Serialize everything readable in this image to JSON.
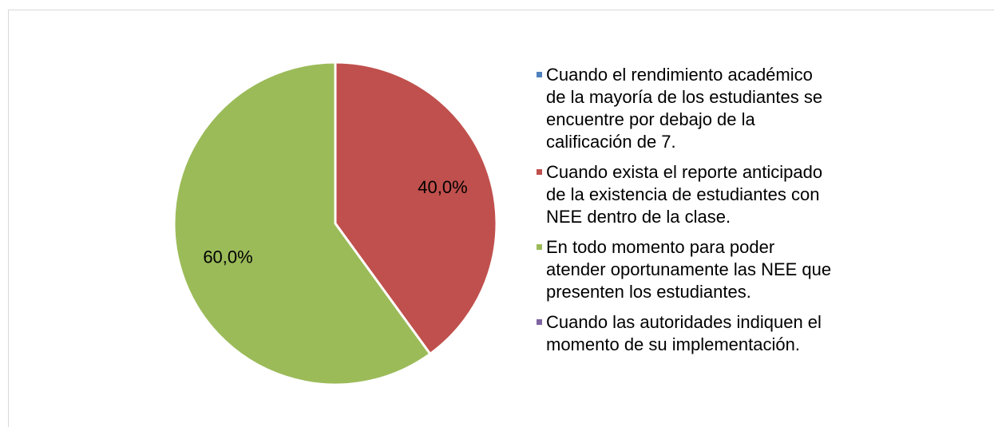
{
  "chart_data": {
    "type": "pie",
    "categories": [
      "Cuando el rendimiento académico de la mayoría de los estudiantes se encuentre por debajo de la calificación de 7.",
      "Cuando exista el reporte anticipado de la existencia de estudiantes con NEE dentro de la clase.",
      "En todo momento para poder atender oportunamente las NEE que presenten los estudiantes.",
      "Cuando las autoridades indiquen el momento de su implementación."
    ],
    "values": [
      0,
      40,
      60,
      0
    ],
    "value_labels": [
      null,
      "40,0%",
      "60,0%",
      null
    ],
    "colors": [
      "#4f81bd",
      "#c0504d",
      "#9bbb59",
      "#8064a2"
    ],
    "legend": "right"
  }
}
